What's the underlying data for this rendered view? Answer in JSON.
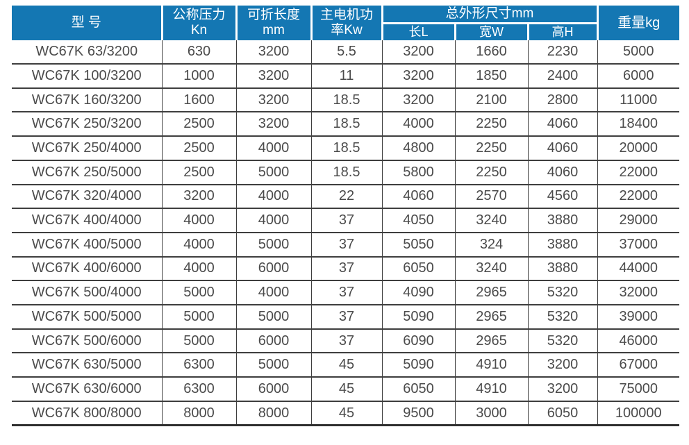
{
  "colors": {
    "header_bg": "#1477B3",
    "header_text": "#ffffff",
    "body_text": "#4b4b4b",
    "grid_line": "#3e3e3e"
  },
  "table": {
    "header": {
      "model": "型 号",
      "pressure": "公称压力\nKn",
      "fold_length": "可折长度\nmm",
      "motor_power": "主电机功\n率Kw",
      "dimensions": "总外形尺寸mm",
      "dim_length": "长L",
      "dim_width": "宽W",
      "dim_height": "高H",
      "weight": "重量kg"
    },
    "rows": [
      [
        "WC67K 63/3200",
        "630",
        "3200",
        "5.5",
        "3200",
        "1660",
        "2230",
        "5000"
      ],
      [
        "WC67K 100/3200",
        "1000",
        "3200",
        "11",
        "3200",
        "1850",
        "2400",
        "6000"
      ],
      [
        "WC67K 160/3200",
        "1600",
        "3200",
        "18.5",
        "3200",
        "2100",
        "2800",
        "11000"
      ],
      [
        "WC67K 250/3200",
        "2500",
        "3200",
        "18.5",
        "4000",
        "2250",
        "4060",
        "18400"
      ],
      [
        "WC67K 250/4000",
        "2500",
        "4000",
        "18.5",
        "4800",
        "2250",
        "4060",
        "20000"
      ],
      [
        "WC67K 250/5000",
        "2500",
        "5000",
        "18.5",
        "5800",
        "2250",
        "4060",
        "22000"
      ],
      [
        "WC67K 320/4000",
        "3200",
        "4000",
        "22",
        "4060",
        "2570",
        "4560",
        "22000"
      ],
      [
        "WC67K 400/4000",
        "4000",
        "4000",
        "37",
        "4050",
        "3240",
        "3880",
        "29000"
      ],
      [
        "WC67K 400/5000",
        "4000",
        "5000",
        "37",
        "5050",
        "324",
        "3880",
        "37000"
      ],
      [
        "WC67K 400/6000",
        "4000",
        "6000",
        "37",
        "6050",
        "3240",
        "3880",
        "44000"
      ],
      [
        "WC67K 500/4000",
        "5000",
        "4000",
        "37",
        "4090",
        "2965",
        "5320",
        "32000"
      ],
      [
        "WC67K 500/5000",
        "5000",
        "5000",
        "37",
        "5090",
        "2965",
        "5320",
        "39000"
      ],
      [
        "WC67K 500/6000",
        "5000",
        "6000",
        "37",
        "6090",
        "2965",
        "5320",
        "46000"
      ],
      [
        "WC67K 630/5000",
        "6300",
        "5000",
        "45",
        "5090",
        "4910",
        "3200",
        "67000"
      ],
      [
        "WC67K 630/6000",
        "6300",
        "6000",
        "45",
        "6050",
        "4910",
        "3200",
        "75000"
      ],
      [
        "WC67K 800/8000",
        "8000",
        "8000",
        "45",
        "9500",
        "3000",
        "6050",
        "100000"
      ]
    ]
  }
}
